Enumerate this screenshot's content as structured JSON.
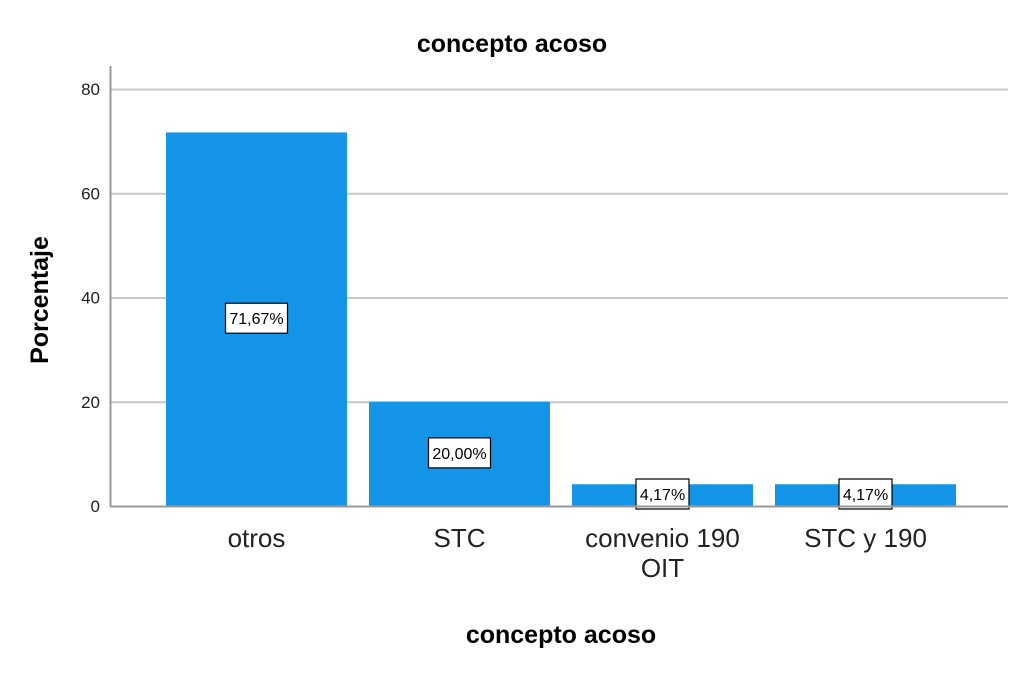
{
  "chart_data": {
    "type": "bar",
    "title": "concepto acoso",
    "xlabel": "concepto acoso",
    "ylabel": "Porcentaje",
    "categories": [
      [
        "otros"
      ],
      [
        "STC"
      ],
      [
        "convenio 190",
        "OIT"
      ],
      [
        "STC y 190"
      ]
    ],
    "values": [
      71.67,
      20.0,
      4.17,
      4.17
    ],
    "data_labels": [
      "71,67%",
      "20,00%",
      "4,17%",
      "4,17%"
    ],
    "ylim": [
      0,
      80
    ],
    "yticks": [
      "0",
      "20",
      "40",
      "60",
      "80"
    ],
    "grid": true,
    "legend": "none",
    "bar_color": "#1595e8"
  }
}
